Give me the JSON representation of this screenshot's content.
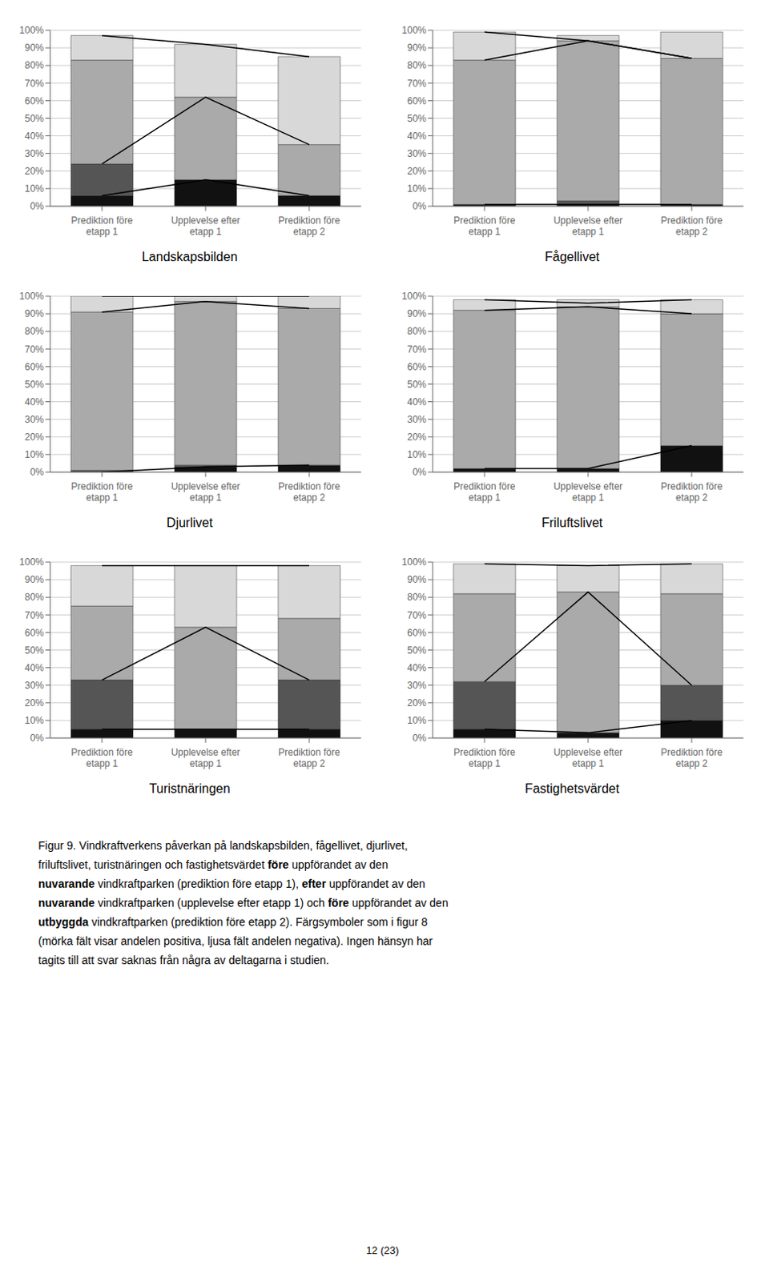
{
  "chart_data": [
    {
      "type": "bar",
      "title": "Landskapsbilden",
      "stacked": true,
      "grid": true,
      "categories": [
        "Prediktion före\netapp 1",
        "Upplevelse efter\netapp 1",
        "Prediktion före\netapp 2"
      ],
      "ylim": [
        0,
        100
      ],
      "yticks": [
        {
          "value": 0,
          "label": "0%"
        },
        {
          "value": 10,
          "label": "10%"
        },
        {
          "value": 20,
          "label": "20%"
        },
        {
          "value": 30,
          "label": "30%"
        },
        {
          "value": 40,
          "label": "40%"
        },
        {
          "value": 50,
          "label": "50%"
        },
        {
          "value": 60,
          "label": "60%"
        },
        {
          "value": 70,
          "label": "70%"
        },
        {
          "value": 80,
          "label": "80%"
        },
        {
          "value": 90,
          "label": "90%"
        },
        {
          "value": 100,
          "label": "100%"
        }
      ],
      "series": [
        {
          "type": "bar",
          "color": "#111111",
          "values": [
            6,
            15,
            6
          ]
        },
        {
          "type": "bar",
          "color": "#555555",
          "values": [
            18,
            0,
            0
          ]
        },
        {
          "type": "bar",
          "color": "#aaaaaa",
          "values": [
            59,
            47,
            29
          ]
        },
        {
          "type": "bar",
          "color": "#d8d8d8",
          "values": [
            14,
            30,
            50
          ]
        },
        {
          "type": "line",
          "color": "#000000",
          "values": [
            97,
            92,
            85
          ]
        },
        {
          "type": "line",
          "color": "#000000",
          "values": [
            24,
            62,
            35
          ]
        },
        {
          "type": "line",
          "color": "#000000",
          "values": [
            6,
            15,
            6
          ]
        }
      ]
    },
    {
      "type": "bar",
      "title": "Fågellivet",
      "stacked": true,
      "grid": true,
      "categories": [
        "Prediktion före\netapp 1",
        "Upplevelse efter\netapp 1",
        "Prediktion före\netapp 2"
      ],
      "ylim": [
        0,
        100
      ],
      "yticks": [
        {
          "value": 0,
          "label": "0%"
        },
        {
          "value": 10,
          "label": "10%"
        },
        {
          "value": 20,
          "label": "20%"
        },
        {
          "value": 30,
          "label": "30%"
        },
        {
          "value": 40,
          "label": "40%"
        },
        {
          "value": 50,
          "label": "50%"
        },
        {
          "value": 60,
          "label": "60%"
        },
        {
          "value": 70,
          "label": "70%"
        },
        {
          "value": 80,
          "label": "80%"
        },
        {
          "value": 90,
          "label": "90%"
        },
        {
          "value": 100,
          "label": "100%"
        }
      ],
      "series": [
        {
          "type": "bar",
          "color": "#111111",
          "values": [
            1,
            1,
            1
          ]
        },
        {
          "type": "bar",
          "color": "#555555",
          "values": [
            0,
            2,
            0
          ]
        },
        {
          "type": "bar",
          "color": "#aaaaaa",
          "values": [
            82,
            91,
            83
          ]
        },
        {
          "type": "bar",
          "color": "#d8d8d8",
          "values": [
            16,
            3,
            15
          ]
        },
        {
          "type": "line",
          "color": "#000000",
          "values": [
            99,
            94,
            84
          ]
        },
        {
          "type": "line",
          "color": "#000000",
          "values": [
            83,
            94,
            84
          ]
        },
        {
          "type": "line",
          "color": "#000000",
          "values": [
            1,
            1,
            1
          ]
        }
      ]
    },
    {
      "type": "bar",
      "title": "Djurlivet",
      "stacked": true,
      "grid": true,
      "categories": [
        "Prediktion före\netapp 1",
        "Upplevelse efter\netapp 1",
        "Prediktion före\netapp 2"
      ],
      "ylim": [
        0,
        100
      ],
      "yticks": [
        {
          "value": 0,
          "label": "0%"
        },
        {
          "value": 10,
          "label": "10%"
        },
        {
          "value": 20,
          "label": "20%"
        },
        {
          "value": 30,
          "label": "30%"
        },
        {
          "value": 40,
          "label": "40%"
        },
        {
          "value": 50,
          "label": "50%"
        },
        {
          "value": 60,
          "label": "60%"
        },
        {
          "value": 70,
          "label": "70%"
        },
        {
          "value": 80,
          "label": "80%"
        },
        {
          "value": 90,
          "label": "90%"
        },
        {
          "value": 100,
          "label": "100%"
        }
      ],
      "series": [
        {
          "type": "bar",
          "color": "#111111",
          "values": [
            0,
            3,
            4
          ]
        },
        {
          "type": "bar",
          "color": "#555555",
          "values": [
            1,
            1,
            0
          ]
        },
        {
          "type": "bar",
          "color": "#aaaaaa",
          "values": [
            90,
            93,
            89
          ]
        },
        {
          "type": "bar",
          "color": "#d8d8d8",
          "values": [
            9,
            3,
            7
          ]
        },
        {
          "type": "line",
          "color": "#000000",
          "values": [
            100,
            100,
            100
          ]
        },
        {
          "type": "line",
          "color": "#000000",
          "values": [
            91,
            97,
            93
          ]
        },
        {
          "type": "line",
          "color": "#000000",
          "values": [
            0,
            3,
            4
          ]
        }
      ]
    },
    {
      "type": "bar",
      "title": "Friluftslivet",
      "stacked": true,
      "grid": true,
      "categories": [
        "Prediktion före\netapp 1",
        "Upplevelse efter\netapp 1",
        "Prediktion före\netapp 2"
      ],
      "ylim": [
        0,
        100
      ],
      "yticks": [
        {
          "value": 0,
          "label": "0%"
        },
        {
          "value": 10,
          "label": "10%"
        },
        {
          "value": 20,
          "label": "20%"
        },
        {
          "value": 30,
          "label": "30%"
        },
        {
          "value": 40,
          "label": "40%"
        },
        {
          "value": 50,
          "label": "50%"
        },
        {
          "value": 60,
          "label": "60%"
        },
        {
          "value": 70,
          "label": "70%"
        },
        {
          "value": 80,
          "label": "80%"
        },
        {
          "value": 90,
          "label": "90%"
        },
        {
          "value": 100,
          "label": "100%"
        }
      ],
      "series": [
        {
          "type": "bar",
          "color": "#111111",
          "values": [
            2,
            2,
            15
          ]
        },
        {
          "type": "bar",
          "color": "#555555",
          "values": [
            0,
            0,
            0
          ]
        },
        {
          "type": "bar",
          "color": "#aaaaaa",
          "values": [
            90,
            92,
            75
          ]
        },
        {
          "type": "bar",
          "color": "#d8d8d8",
          "values": [
            6,
            4,
            8
          ]
        },
        {
          "type": "line",
          "color": "#000000",
          "values": [
            98,
            96,
            98
          ]
        },
        {
          "type": "line",
          "color": "#000000",
          "values": [
            92,
            94,
            90
          ]
        },
        {
          "type": "line",
          "color": "#000000",
          "values": [
            2,
            2,
            15
          ]
        }
      ]
    },
    {
      "type": "bar",
      "title": "Turistnäringen",
      "stacked": true,
      "grid": true,
      "categories": [
        "Prediktion före\netapp 1",
        "Upplevelse efter\netapp 1",
        "Prediktion före\netapp 2"
      ],
      "ylim": [
        0,
        100
      ],
      "yticks": [
        {
          "value": 0,
          "label": "0%"
        },
        {
          "value": 10,
          "label": "10%"
        },
        {
          "value": 20,
          "label": "20%"
        },
        {
          "value": 30,
          "label": "30%"
        },
        {
          "value": 40,
          "label": "40%"
        },
        {
          "value": 50,
          "label": "50%"
        },
        {
          "value": 60,
          "label": "60%"
        },
        {
          "value": 70,
          "label": "70%"
        },
        {
          "value": 80,
          "label": "80%"
        },
        {
          "value": 90,
          "label": "90%"
        },
        {
          "value": 100,
          "label": "100%"
        }
      ],
      "series": [
        {
          "type": "bar",
          "color": "#111111",
          "values": [
            5,
            5,
            5
          ]
        },
        {
          "type": "bar",
          "color": "#555555",
          "values": [
            28,
            0,
            28
          ]
        },
        {
          "type": "bar",
          "color": "#aaaaaa",
          "values": [
            42,
            58,
            35
          ]
        },
        {
          "type": "bar",
          "color": "#d8d8d8",
          "values": [
            23,
            35,
            30
          ]
        },
        {
          "type": "line",
          "color": "#000000",
          "values": [
            98,
            98,
            98
          ]
        },
        {
          "type": "line",
          "color": "#000000",
          "values": [
            33,
            63,
            33
          ]
        },
        {
          "type": "line",
          "color": "#000000",
          "values": [
            5,
            5,
            5
          ]
        }
      ]
    },
    {
      "type": "bar",
      "title": "Fastighetsvärdet",
      "stacked": true,
      "grid": true,
      "categories": [
        "Prediktion före\netapp 1",
        "Upplevelse efter\netapp 1",
        "Prediktion före\netapp 2"
      ],
      "ylim": [
        0,
        100
      ],
      "yticks": [
        {
          "value": 0,
          "label": "0%"
        },
        {
          "value": 10,
          "label": "10%"
        },
        {
          "value": 20,
          "label": "20%"
        },
        {
          "value": 30,
          "label": "30%"
        },
        {
          "value": 40,
          "label": "40%"
        },
        {
          "value": 50,
          "label": "50%"
        },
        {
          "value": 60,
          "label": "60%"
        },
        {
          "value": 70,
          "label": "70%"
        },
        {
          "value": 80,
          "label": "80%"
        },
        {
          "value": 90,
          "label": "90%"
        },
        {
          "value": 100,
          "label": "100%"
        }
      ],
      "series": [
        {
          "type": "bar",
          "color": "#111111",
          "values": [
            5,
            3,
            10
          ]
        },
        {
          "type": "bar",
          "color": "#555555",
          "values": [
            27,
            0,
            20
          ]
        },
        {
          "type": "bar",
          "color": "#aaaaaa",
          "values": [
            50,
            80,
            52
          ]
        },
        {
          "type": "bar",
          "color": "#d8d8d8",
          "values": [
            17,
            15,
            17
          ]
        },
        {
          "type": "line",
          "color": "#000000",
          "values": [
            99,
            98,
            99
          ]
        },
        {
          "type": "line",
          "color": "#000000",
          "values": [
            32,
            83,
            30
          ]
        },
        {
          "type": "line",
          "color": "#000000",
          "values": [
            5,
            3,
            10
          ]
        }
      ]
    }
  ],
  "caption": [
    {
      "text": "Figur 9. Vindkraftverkens påverkan på landskapsbilden, fågellivet, djurlivet,\nfriluftslivet, turistnäringen och fastighetsvärdet ",
      "bold": false
    },
    {
      "text": "före",
      "bold": true
    },
    {
      "text": " uppförandet av den\n",
      "bold": false
    },
    {
      "text": "nuvarande",
      "bold": true
    },
    {
      "text": " vindkraftparken (prediktion före etapp 1), ",
      "bold": false
    },
    {
      "text": "efter",
      "bold": true
    },
    {
      "text": " uppförandet av den\n",
      "bold": false
    },
    {
      "text": "nuvarande",
      "bold": true
    },
    {
      "text": " vindkraftparken (upplevelse efter etapp 1) och ",
      "bold": false
    },
    {
      "text": "före",
      "bold": true
    },
    {
      "text": " uppförandet av den\n",
      "bold": false
    },
    {
      "text": "utbyggda",
      "bold": true
    },
    {
      "text": " vindkraftparken (prediktion före etapp 2). Färgsymboler som i figur 8\n(mörka fält visar andelen positiva, ljusa fält andelen negativa). Ingen hänsyn har\ntagits till att svar saknas från några av deltagarna i studien.",
      "bold": false
    }
  ],
  "page_number": "12 (23)"
}
